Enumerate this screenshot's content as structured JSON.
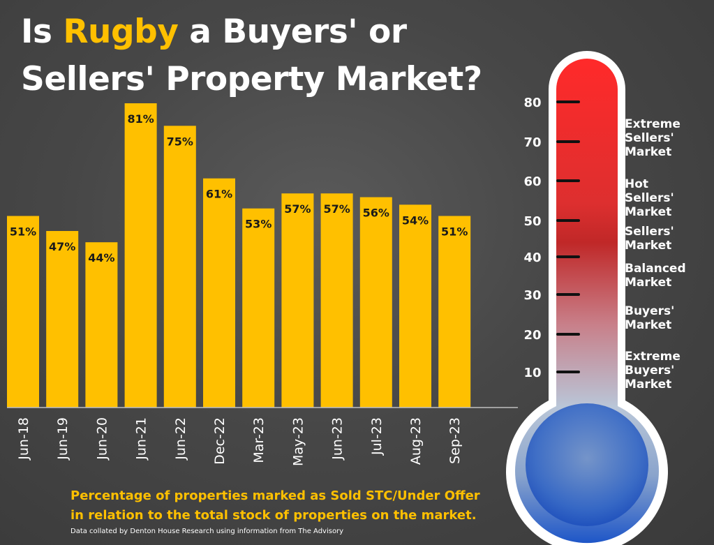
{
  "title": {
    "part1": "Is ",
    "highlight": "Rugby",
    "part2": " a Buyers' or",
    "line2": "Sellers' Property Market?"
  },
  "colors": {
    "bar": "#ffc000",
    "title_highlight": "#ffc000",
    "thermometer_top": "#ff2a2a",
    "thermometer_bottom": "#1e56c8"
  },
  "chart_data": {
    "type": "bar",
    "title": "Is Rugby a Buyers' or Sellers' Property Market?",
    "categories": [
      "Jun-18",
      "Jun-19",
      "Jun-20",
      "Jun-21",
      "Jun-22",
      "Dec-22",
      "Mar-23",
      "May-23",
      "Jun-23",
      "Jul-23",
      "Aug-23",
      "Sep-23"
    ],
    "values": [
      51,
      47,
      44,
      81,
      75,
      61,
      53,
      57,
      57,
      56,
      54,
      51
    ],
    "value_labels": [
      "51%",
      "47%",
      "44%",
      "81%",
      "75%",
      "61%",
      "53%",
      "57%",
      "57%",
      "56%",
      "54%",
      "51%"
    ],
    "unit": "%",
    "xlabel": "",
    "ylabel": "",
    "ylim": [
      0,
      81
    ]
  },
  "thermometer": {
    "scale": [
      80,
      70,
      60,
      50,
      40,
      30,
      20,
      10
    ],
    "zones": [
      {
        "lines": [
          "Extreme",
          "Sellers'",
          "Market"
        ]
      },
      {
        "lines": [
          "Hot",
          "Sellers'",
          "Market"
        ]
      },
      {
        "lines": [
          "Sellers'",
          "Market"
        ]
      },
      {
        "lines": [
          "Balanced",
          "Market"
        ]
      },
      {
        "lines": [
          "Buyers'",
          "Market"
        ]
      },
      {
        "lines": [
          "Extreme",
          "Buyers'",
          "Market"
        ]
      }
    ]
  },
  "caption": {
    "line1": "Percentage of properties marked as Sold STC/Under Offer",
    "line2": "in relation to the total stock of properties on the market."
  },
  "credit": "Data collated by Denton House Research using information from The Advisory"
}
